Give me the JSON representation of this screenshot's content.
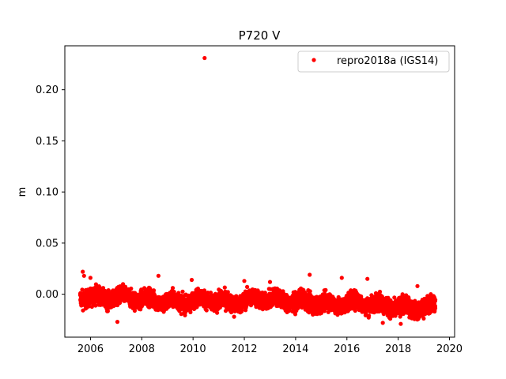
{
  "chart_data": {
    "type": "scatter",
    "title": "P720 V",
    "xlabel": "",
    "ylabel": "m",
    "xlim": [
      2005.0,
      2020.2
    ],
    "ylim": [
      -0.042,
      0.243
    ],
    "xticks": [
      2006,
      2008,
      2010,
      2012,
      2014,
      2016,
      2018,
      2020
    ],
    "yticks": [
      0.0,
      0.05,
      0.1,
      0.15,
      0.2
    ],
    "ytick_labels": [
      "0.00",
      "0.05",
      "0.10",
      "0.15",
      "0.20"
    ],
    "grid": false,
    "legend_position": "top-right",
    "colors": {
      "series": "#ff0000",
      "axes": "#000000"
    },
    "series": [
      {
        "name": "repro2018a (IGS14)",
        "marker": "circle",
        "x_range": [
          2005.6,
          2019.45
        ],
        "trend": [
          [
            2005.6,
            -0.002
          ],
          [
            2006.5,
            -0.004
          ],
          [
            2007.5,
            -0.003
          ],
          [
            2008.5,
            -0.006
          ],
          [
            2009.5,
            -0.008
          ],
          [
            2010.5,
            -0.005
          ],
          [
            2011.5,
            -0.009
          ],
          [
            2012.5,
            -0.004
          ],
          [
            2013.5,
            -0.006
          ],
          [
            2014.5,
            -0.008
          ],
          [
            2015.5,
            -0.01
          ],
          [
            2016.5,
            -0.008
          ],
          [
            2017.5,
            -0.011
          ],
          [
            2018.5,
            -0.014
          ],
          [
            2019.45,
            -0.012
          ]
        ],
        "scatter_width": 0.009,
        "outliers": [
          [
            2010.45,
            0.231
          ],
          [
            2005.7,
            0.022
          ],
          [
            2005.75,
            0.018
          ],
          [
            2006.0,
            0.016
          ],
          [
            2008.65,
            0.018
          ],
          [
            2009.95,
            0.014
          ],
          [
            2012.0,
            0.013
          ],
          [
            2013.0,
            0.012
          ],
          [
            2014.55,
            0.019
          ],
          [
            2015.8,
            0.016
          ],
          [
            2016.8,
            0.015
          ],
          [
            2018.75,
            0.008
          ],
          [
            2011.6,
            -0.022
          ],
          [
            2007.05,
            -0.027
          ],
          [
            2017.4,
            -0.028
          ],
          [
            2018.1,
            -0.029
          ]
        ]
      }
    ]
  }
}
